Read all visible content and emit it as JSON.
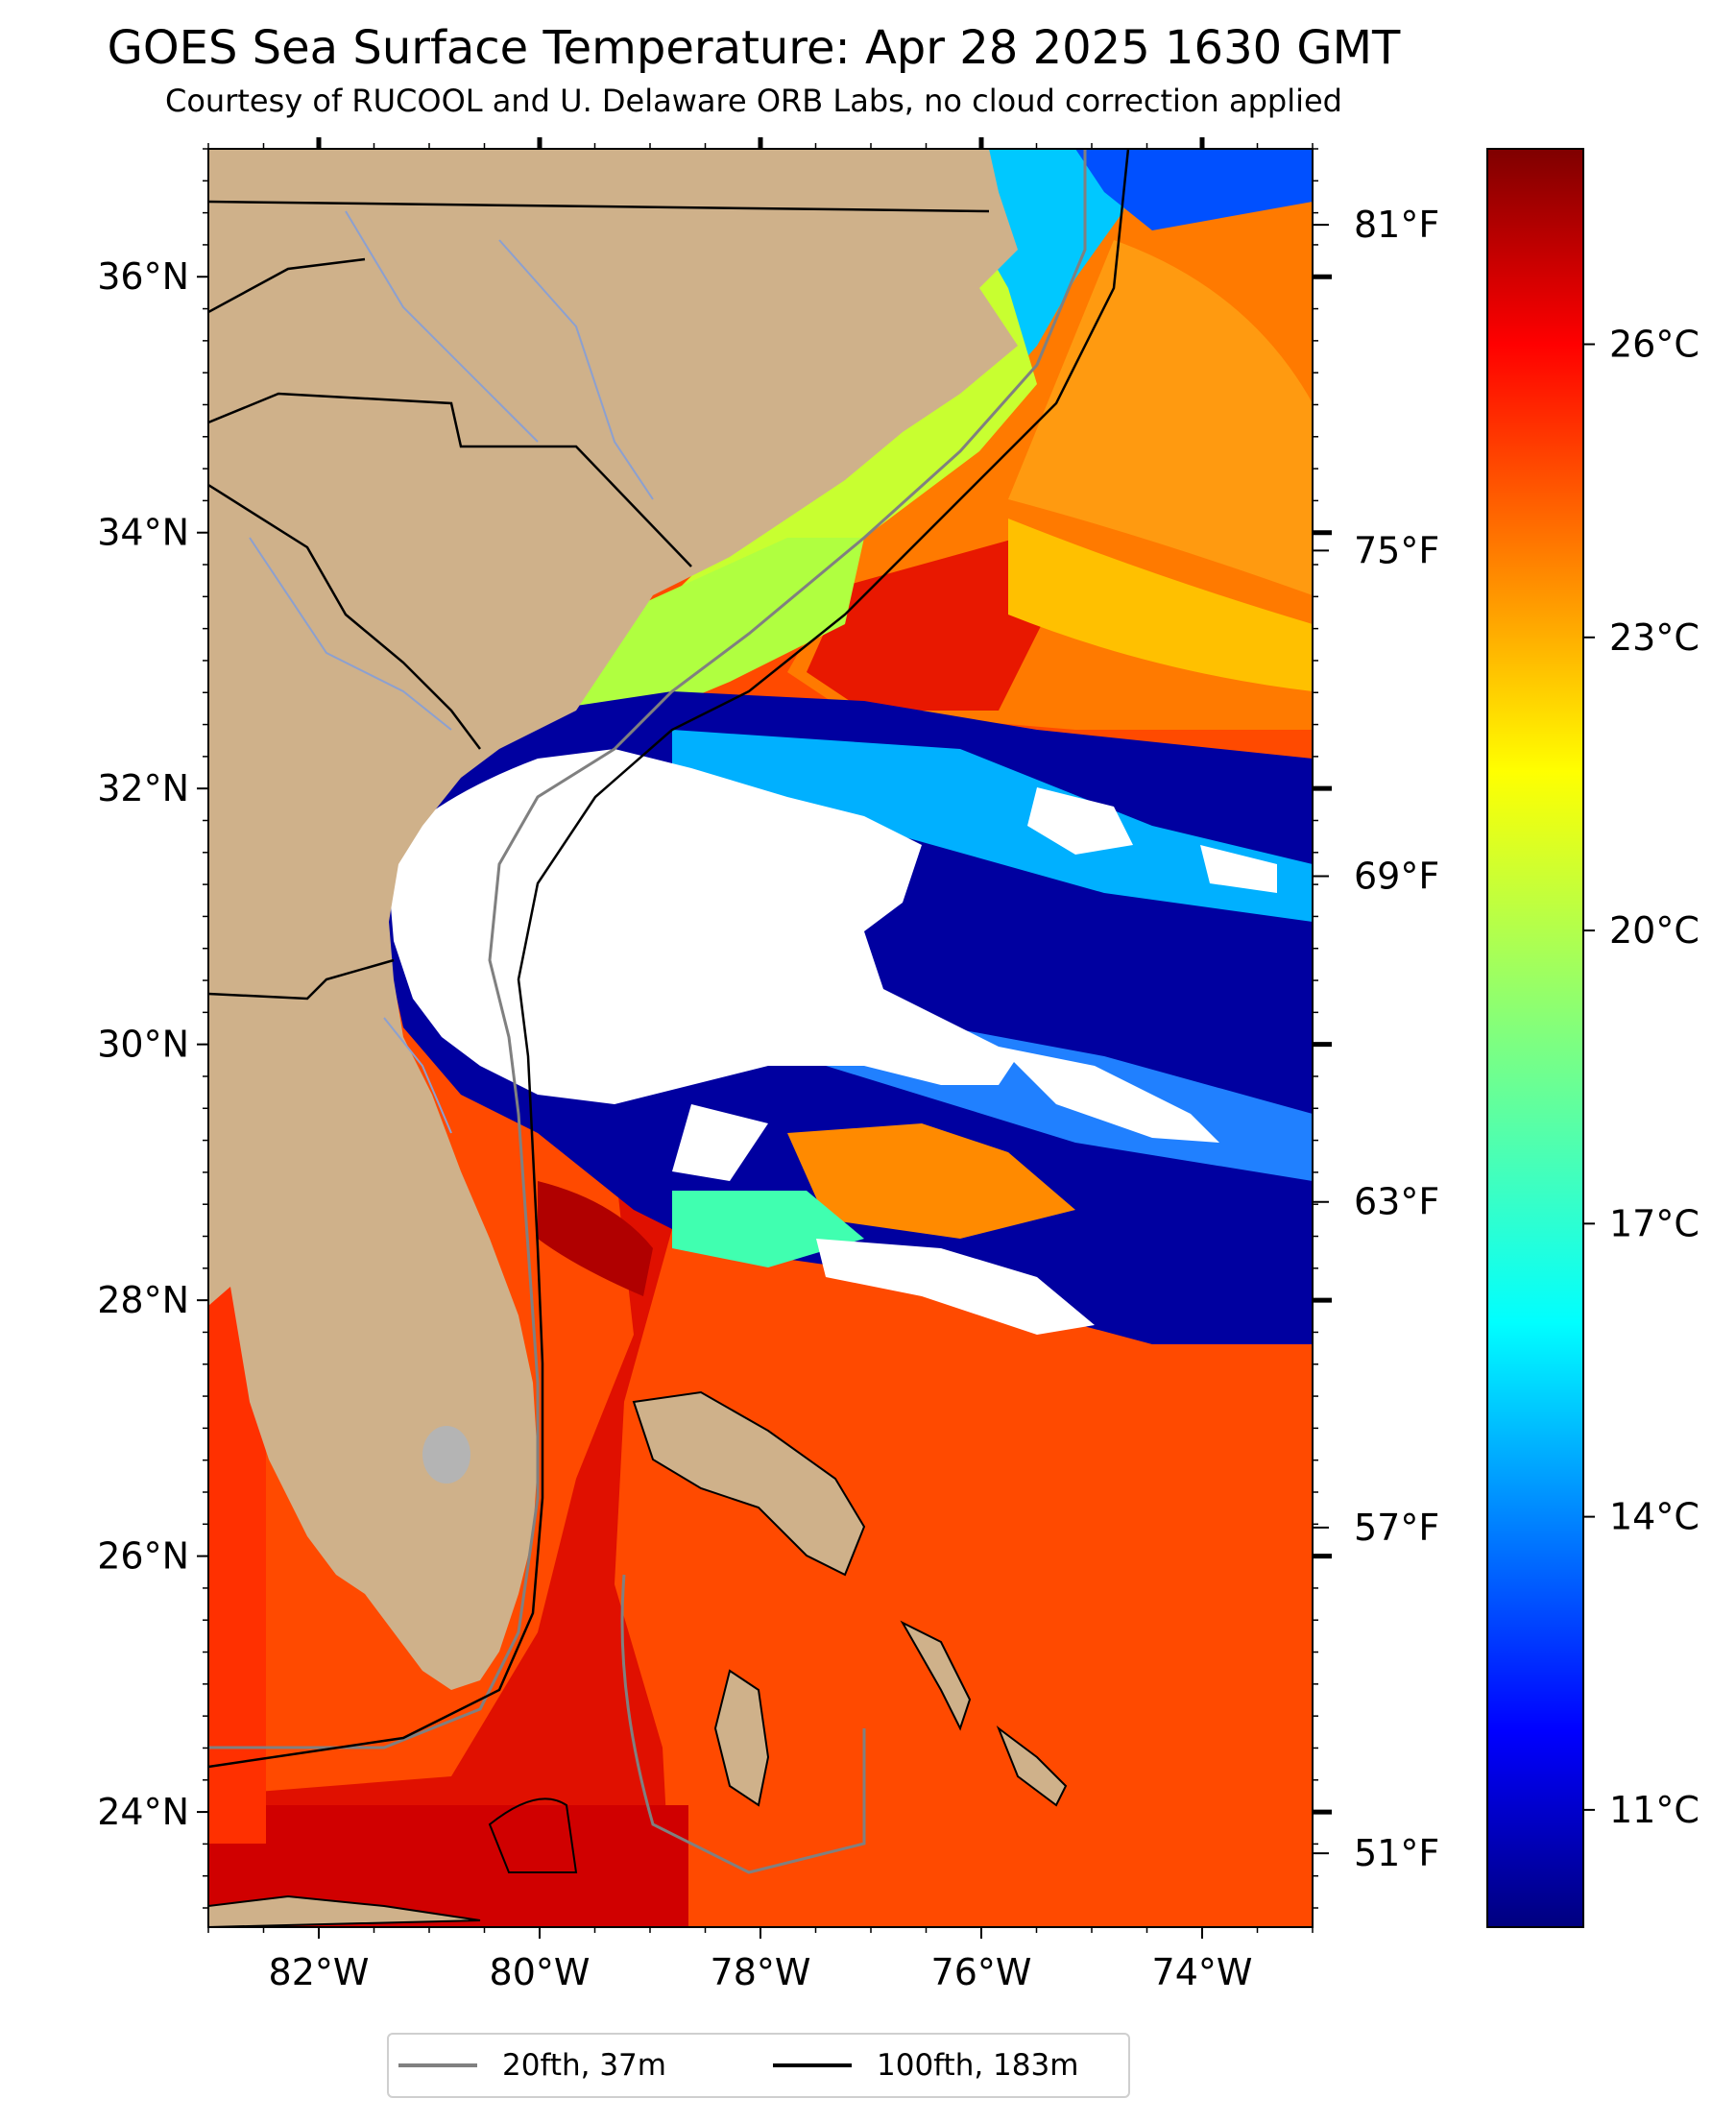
{
  "title": "GOES Sea Surface Temperature: Apr 28 2025 1630 GMT",
  "subtitle": "Courtesy of RUCOOL and U. Delaware ORB Labs, no cloud correction applied",
  "map": {
    "lon_range": [
      -83,
      -73
    ],
    "lat_range": [
      23.1,
      37.0
    ],
    "lon_ticks": [
      "82°W",
      "80°W",
      "78°W",
      "76°W",
      "74°W"
    ],
    "lat_ticks": [
      "24°N",
      "26°N",
      "28°N",
      "30°N",
      "32°N",
      "34°N",
      "36°N"
    ],
    "fahrenheit_ticks": [
      "51°F",
      "57°F",
      "63°F",
      "69°F",
      "75°F",
      "81°F"
    ],
    "land_color": "#cfb18a",
    "cloud_mask_color": "#ffffff"
  },
  "colorbar": {
    "colormap": "jet",
    "range_c": [
      9.8,
      28.0
    ],
    "ticks": [
      "11°C",
      "14°C",
      "17°C",
      "20°C",
      "23°C",
      "26°C"
    ]
  },
  "legend": {
    "items": [
      {
        "label": "20fth, 37m",
        "color": "#808080"
      },
      {
        "label": "100fth, 183m",
        "color": "#000000"
      }
    ]
  }
}
